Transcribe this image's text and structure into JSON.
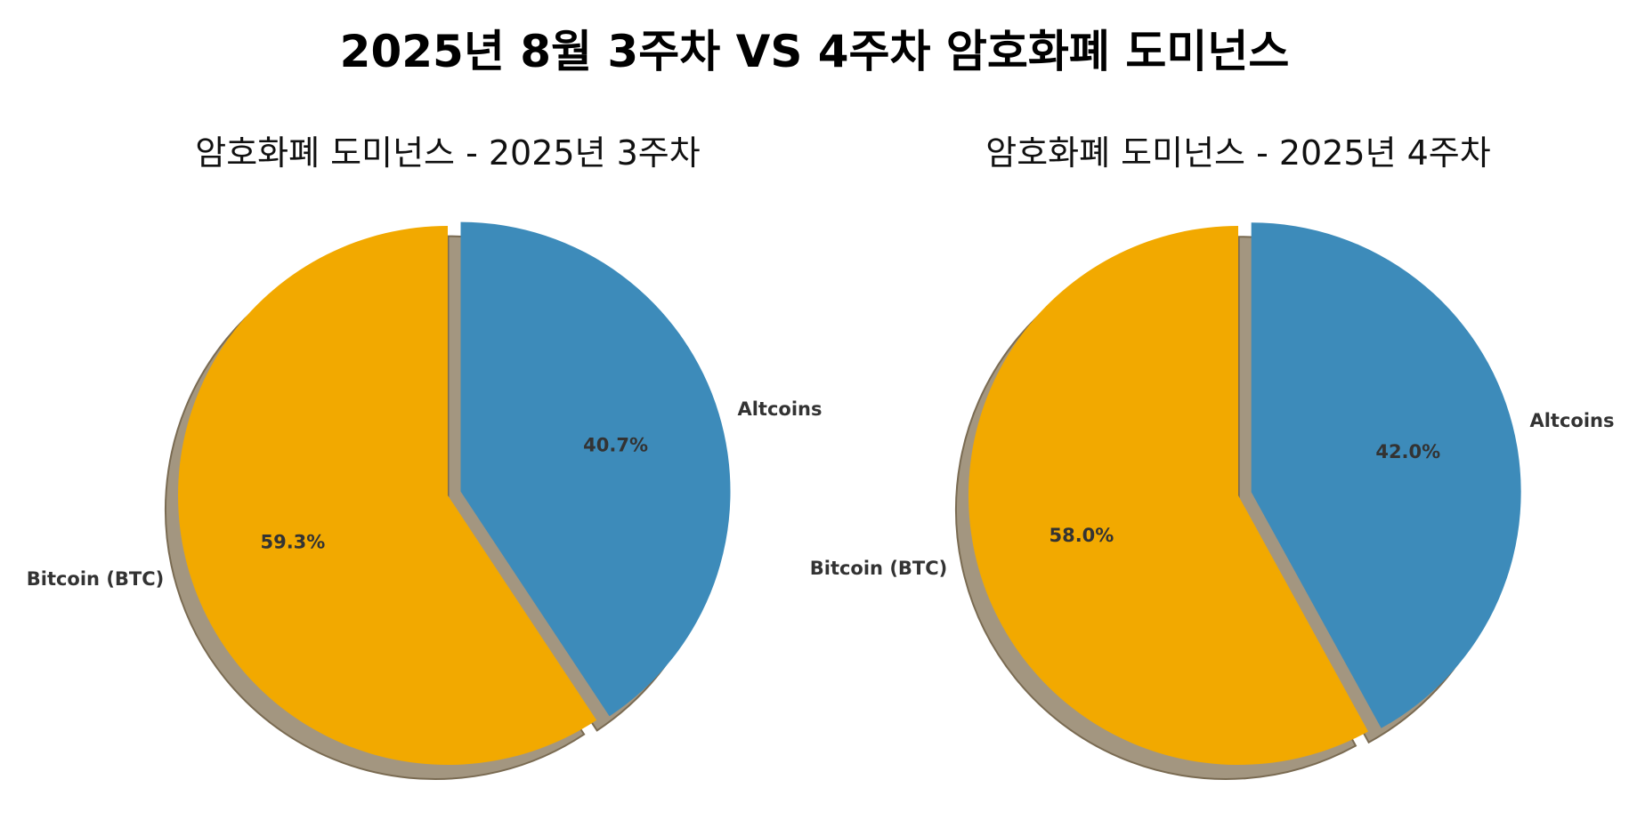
{
  "title": "2025년 8월 3주차 VS 4주차 암호화폐 도미넌스",
  "colors": {
    "btc": "#F2A900",
    "alt": "#3D8BBA",
    "shadow": "#A39680",
    "shadow_edge": "#7A6B52",
    "text": "#333333"
  },
  "chart_data": [
    {
      "type": "pie",
      "title": "암호화폐 도미넌스 - 2025년 3주차",
      "labels": [
        "Bitcoin (BTC)",
        "Altcoins"
      ],
      "values": [
        59.3,
        40.7
      ],
      "autopct": [
        "59.3%",
        "40.7%"
      ],
      "explode": [
        0,
        0.05
      ],
      "shadow": true,
      "startangle": 90
    },
    {
      "type": "pie",
      "title": "암호화폐 도미넌스 - 2025년 4주차",
      "labels": [
        "Bitcoin (BTC)",
        "Altcoins"
      ],
      "values": [
        58.0,
        42.0
      ],
      "autopct": [
        "58.0%",
        "42.0%"
      ],
      "explode": [
        0,
        0.05
      ],
      "shadow": true,
      "startangle": 90
    }
  ]
}
